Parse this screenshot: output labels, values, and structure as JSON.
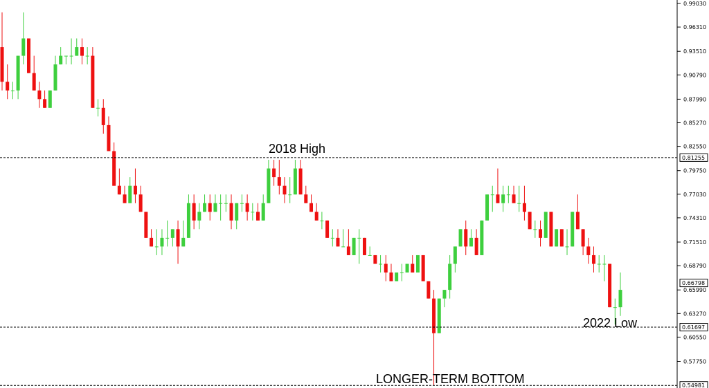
{
  "chart_data": {
    "type": "candlestick",
    "y_ticks": [
      "0.99030",
      "0.96310",
      "0.93510",
      "0.90790",
      "0.87990",
      "0.85270",
      "0.82550",
      "0.79750",
      "0.77030",
      "0.74310",
      "0.71510",
      "0.68790",
      "0.65990",
      "0.63270",
      "0.60550",
      "0.57750"
    ],
    "ylim": [
      0.5468,
      0.9943
    ],
    "price_tags": [
      {
        "label": "0.81255",
        "value": 0.81255,
        "dashed": true
      },
      {
        "label": "0.66798",
        "value": 0.66798,
        "dashed": false
      },
      {
        "label": "0.61697",
        "value": 0.61697,
        "dashed": true
      },
      {
        "label": "0.54981",
        "value": 0.54981,
        "dashed": true
      }
    ],
    "annotations": [
      "2018 High",
      "2022 Low",
      "LONGER-TERM BOTTOM"
    ],
    "colors": {
      "up": "#3ecf3e",
      "down": "#ee1111",
      "grid": "#000000"
    },
    "candles": [
      [
        0.94,
        0.98,
        0.89,
        0.9
      ],
      [
        0.9,
        0.92,
        0.88,
        0.89
      ],
      [
        0.89,
        0.9,
        0.88,
        0.89
      ],
      [
        0.89,
        0.93,
        0.88,
        0.93
      ],
      [
        0.93,
        0.98,
        0.92,
        0.95
      ],
      [
        0.95,
        0.95,
        0.91,
        0.91
      ],
      [
        0.91,
        0.93,
        0.89,
        0.89
      ],
      [
        0.89,
        0.9,
        0.87,
        0.88
      ],
      [
        0.88,
        0.89,
        0.87,
        0.87
      ],
      [
        0.87,
        0.89,
        0.87,
        0.89
      ],
      [
        0.89,
        0.93,
        0.89,
        0.92
      ],
      [
        0.92,
        0.94,
        0.92,
        0.93
      ],
      [
        0.93,
        0.93,
        0.92,
        0.93
      ],
      [
        0.93,
        0.95,
        0.92,
        0.93
      ],
      [
        0.93,
        0.95,
        0.93,
        0.94
      ],
      [
        0.94,
        0.95,
        0.92,
        0.93
      ],
      [
        0.93,
        0.94,
        0.92,
        0.93
      ],
      [
        0.93,
        0.94,
        0.87,
        0.87
      ],
      [
        0.87,
        0.88,
        0.86,
        0.87
      ],
      [
        0.87,
        0.88,
        0.84,
        0.85
      ],
      [
        0.85,
        0.86,
        0.82,
        0.82
      ],
      [
        0.82,
        0.83,
        0.78,
        0.78
      ],
      [
        0.78,
        0.8,
        0.77,
        0.77
      ],
      [
        0.77,
        0.78,
        0.76,
        0.76
      ],
      [
        0.76,
        0.79,
        0.76,
        0.78
      ],
      [
        0.78,
        0.8,
        0.76,
        0.77
      ],
      [
        0.77,
        0.78,
        0.75,
        0.75
      ],
      [
        0.75,
        0.75,
        0.72,
        0.72
      ],
      [
        0.72,
        0.73,
        0.71,
        0.71
      ],
      [
        0.71,
        0.73,
        0.7,
        0.71
      ],
      [
        0.71,
        0.73,
        0.7,
        0.72
      ],
      [
        0.72,
        0.74,
        0.71,
        0.72
      ],
      [
        0.72,
        0.73,
        0.71,
        0.73
      ],
      [
        0.73,
        0.74,
        0.69,
        0.71
      ],
      [
        0.71,
        0.74,
        0.71,
        0.72
      ],
      [
        0.72,
        0.77,
        0.72,
        0.76
      ],
      [
        0.76,
        0.77,
        0.73,
        0.74
      ],
      [
        0.74,
        0.76,
        0.73,
        0.75
      ],
      [
        0.75,
        0.77,
        0.75,
        0.76
      ],
      [
        0.76,
        0.77,
        0.74,
        0.75
      ],
      [
        0.75,
        0.77,
        0.75,
        0.76
      ],
      [
        0.76,
        0.77,
        0.74,
        0.76
      ],
      [
        0.76,
        0.77,
        0.75,
        0.76
      ],
      [
        0.76,
        0.77,
        0.73,
        0.74
      ],
      [
        0.74,
        0.76,
        0.73,
        0.76
      ],
      [
        0.76,
        0.77,
        0.75,
        0.76
      ],
      [
        0.76,
        0.77,
        0.74,
        0.75
      ],
      [
        0.75,
        0.76,
        0.74,
        0.75
      ],
      [
        0.75,
        0.76,
        0.74,
        0.74
      ],
      [
        0.74,
        0.77,
        0.74,
        0.76
      ],
      [
        0.76,
        0.81,
        0.76,
        0.8
      ],
      [
        0.8,
        0.81,
        0.78,
        0.79
      ],
      [
        0.79,
        0.81,
        0.77,
        0.78
      ],
      [
        0.78,
        0.79,
        0.76,
        0.77
      ],
      [
        0.77,
        0.79,
        0.76,
        0.77
      ],
      [
        0.77,
        0.81,
        0.77,
        0.8
      ],
      [
        0.8,
        0.81,
        0.77,
        0.77
      ],
      [
        0.77,
        0.78,
        0.76,
        0.76
      ],
      [
        0.76,
        0.77,
        0.75,
        0.75
      ],
      [
        0.75,
        0.76,
        0.74,
        0.74
      ],
      [
        0.74,
        0.75,
        0.73,
        0.74
      ],
      [
        0.74,
        0.74,
        0.72,
        0.72
      ],
      [
        0.72,
        0.73,
        0.71,
        0.72
      ],
      [
        0.72,
        0.73,
        0.71,
        0.71
      ],
      [
        0.71,
        0.73,
        0.71,
        0.71
      ],
      [
        0.71,
        0.73,
        0.7,
        0.7
      ],
      [
        0.7,
        0.72,
        0.7,
        0.72
      ],
      [
        0.72,
        0.73,
        0.69,
        0.72
      ],
      [
        0.72,
        0.72,
        0.7,
        0.7
      ],
      [
        0.7,
        0.71,
        0.7,
        0.7
      ],
      [
        0.7,
        0.7,
        0.69,
        0.69
      ],
      [
        0.69,
        0.7,
        0.68,
        0.69
      ],
      [
        0.69,
        0.7,
        0.67,
        0.68
      ],
      [
        0.68,
        0.69,
        0.67,
        0.67
      ],
      [
        0.67,
        0.68,
        0.67,
        0.68
      ],
      [
        0.68,
        0.69,
        0.67,
        0.68
      ],
      [
        0.68,
        0.69,
        0.68,
        0.69
      ],
      [
        0.69,
        0.7,
        0.68,
        0.68
      ],
      [
        0.68,
        0.7,
        0.68,
        0.7
      ],
      [
        0.7,
        0.7,
        0.67,
        0.67
      ],
      [
        0.67,
        0.67,
        0.65,
        0.65
      ],
      [
        0.65,
        0.66,
        0.55,
        0.61
      ],
      [
        0.61,
        0.65,
        0.61,
        0.65
      ],
      [
        0.65,
        0.66,
        0.64,
        0.66
      ],
      [
        0.66,
        0.7,
        0.65,
        0.69
      ],
      [
        0.69,
        0.71,
        0.68,
        0.71
      ],
      [
        0.71,
        0.73,
        0.71,
        0.73
      ],
      [
        0.73,
        0.74,
        0.7,
        0.71
      ],
      [
        0.71,
        0.73,
        0.71,
        0.72
      ],
      [
        0.72,
        0.73,
        0.7,
        0.7
      ],
      [
        0.7,
        0.74,
        0.7,
        0.74
      ],
      [
        0.74,
        0.77,
        0.74,
        0.77
      ],
      [
        0.77,
        0.78,
        0.75,
        0.77
      ],
      [
        0.77,
        0.8,
        0.76,
        0.76
      ],
      [
        0.76,
        0.78,
        0.75,
        0.77
      ],
      [
        0.77,
        0.78,
        0.76,
        0.77
      ],
      [
        0.77,
        0.78,
        0.76,
        0.76
      ],
      [
        0.76,
        0.78,
        0.75,
        0.76
      ],
      [
        0.76,
        0.78,
        0.74,
        0.75
      ],
      [
        0.75,
        0.75,
        0.73,
        0.73
      ],
      [
        0.73,
        0.74,
        0.72,
        0.73
      ],
      [
        0.73,
        0.74,
        0.71,
        0.72
      ],
      [
        0.72,
        0.75,
        0.72,
        0.75
      ],
      [
        0.75,
        0.75,
        0.71,
        0.71
      ],
      [
        0.71,
        0.73,
        0.71,
        0.73
      ],
      [
        0.73,
        0.73,
        0.71,
        0.71
      ],
      [
        0.71,
        0.73,
        0.7,
        0.71
      ],
      [
        0.71,
        0.75,
        0.71,
        0.75
      ],
      [
        0.75,
        0.77,
        0.73,
        0.73
      ],
      [
        0.73,
        0.73,
        0.7,
        0.71
      ],
      [
        0.71,
        0.72,
        0.69,
        0.7
      ],
      [
        0.7,
        0.71,
        0.68,
        0.69
      ],
      [
        0.69,
        0.7,
        0.68,
        0.69
      ],
      [
        0.69,
        0.7,
        0.67,
        0.69
      ],
      [
        0.69,
        0.69,
        0.64,
        0.64
      ],
      [
        0.64,
        0.65,
        0.62,
        0.64
      ],
      [
        0.64,
        0.68,
        0.63,
        0.66
      ]
    ]
  }
}
